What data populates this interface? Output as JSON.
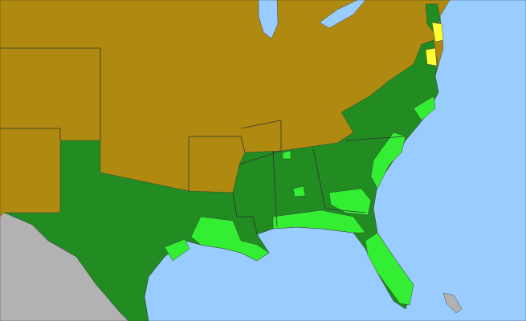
{
  "map": {
    "colors": {
      "ocean": "#99ccff",
      "outside": "#b2b2b2",
      "absent": "#b08a10",
      "present": "#228b22",
      "native": "#33ee33",
      "other": "#ffff33",
      "border": "#333333"
    }
  }
}
